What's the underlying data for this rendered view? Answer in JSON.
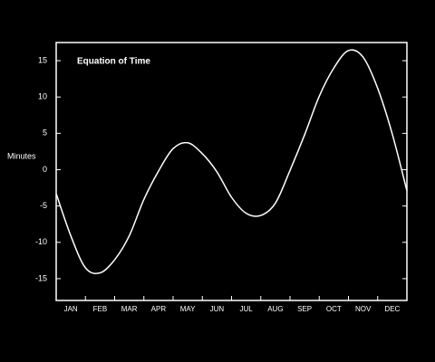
{
  "chart_data": {
    "type": "line",
    "title": "Equation of Time",
    "y_label": "Minutes",
    "categories": [
      null,
      "JAN",
      null,
      "FEB",
      null,
      "MAR",
      null,
      "APR",
      null,
      "MAY",
      null,
      "JUN",
      null,
      "JUL",
      null,
      "AUG",
      null,
      "SEP",
      null,
      "OCT",
      null,
      "NOV",
      null,
      "DEC",
      null
    ],
    "series": [
      {
        "name": "Equation of Time",
        "color": "#ffffff",
        "values": [
          -3.3,
          -9.1,
          -13.5,
          -14.2,
          -12.4,
          -9.1,
          -4.1,
          -0.2,
          2.9,
          3.7,
          2.2,
          -0.3,
          -3.8,
          -6.0,
          -6.3,
          -4.6,
          -0.1,
          4.8,
          10.1,
          14.0,
          16.4,
          15.5,
          11.2,
          4.9,
          -2.9
        ]
      }
    ],
    "ylim": [
      -18,
      17.5
    ],
    "yticks": [
      -15,
      -10,
      -5,
      0,
      5,
      10,
      15
    ]
  }
}
